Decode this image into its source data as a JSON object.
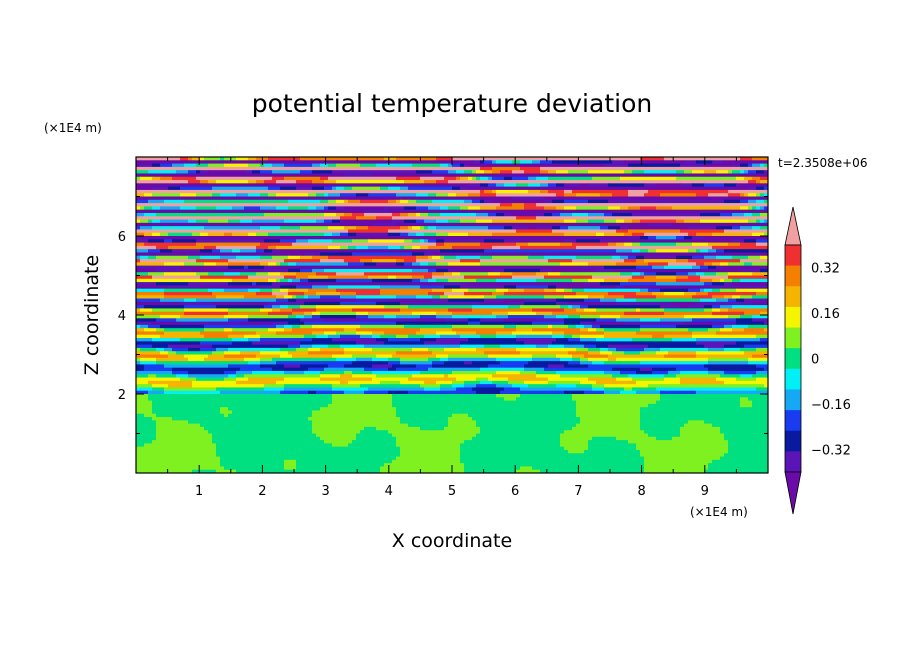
{
  "chart_data": {
    "type": "heatmap",
    "title": "potential temperature deviation",
    "xlabel": "X coordinate",
    "ylabel": "Z coordinate",
    "x_unit": "(×1E4 m)",
    "z_unit": "(×1E4 m)",
    "time_label": "t=2.3508e+06",
    "xlim": [
      0,
      10
    ],
    "ylim": [
      0,
      8
    ],
    "x_ticks": [
      "1",
      "2",
      "3",
      "4",
      "5",
      "6",
      "7",
      "8",
      "9"
    ],
    "y_ticks": [
      "2",
      "4",
      "6"
    ],
    "colorbar": {
      "levels": [
        -0.48,
        -0.4,
        -0.32,
        -0.24,
        -0.16,
        -0.08,
        0,
        0.08,
        0.16,
        0.24,
        0.32,
        0.4,
        0.48
      ],
      "tick_labels": [
        "0.32",
        "0.16",
        "0",
        "−0.16",
        "−0.32"
      ],
      "tick_values": [
        0.32,
        0.16,
        0,
        -0.16,
        -0.32
      ],
      "colors": [
        "#6a0aa8",
        "#5a14b8",
        "#0a1aa0",
        "#1a3cf0",
        "#15a8f5",
        "#00f0f5",
        "#00e080",
        "#7ff020",
        "#f5f500",
        "#f5b400",
        "#f58000",
        "#f03030",
        "#f0a0a0"
      ]
    }
  }
}
